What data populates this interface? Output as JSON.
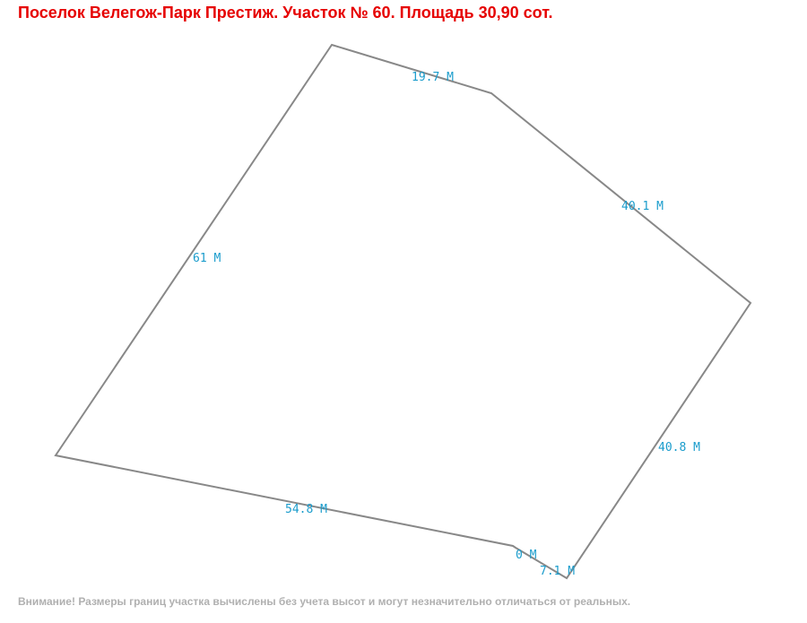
{
  "header": {
    "title": "Поселок Велегож-Парк Престиж. Участок № 60. Площадь 30,90 сот."
  },
  "edges": [
    "19.7 M",
    "40.1 M",
    "61 M",
    "40.8 M",
    "54.8 M",
    "0 M",
    "7.1 M"
  ],
  "footer": {
    "note": "Внимание! Размеры границ участка вычислены без учета высот и могут незначительно отличаться от реальных."
  }
}
